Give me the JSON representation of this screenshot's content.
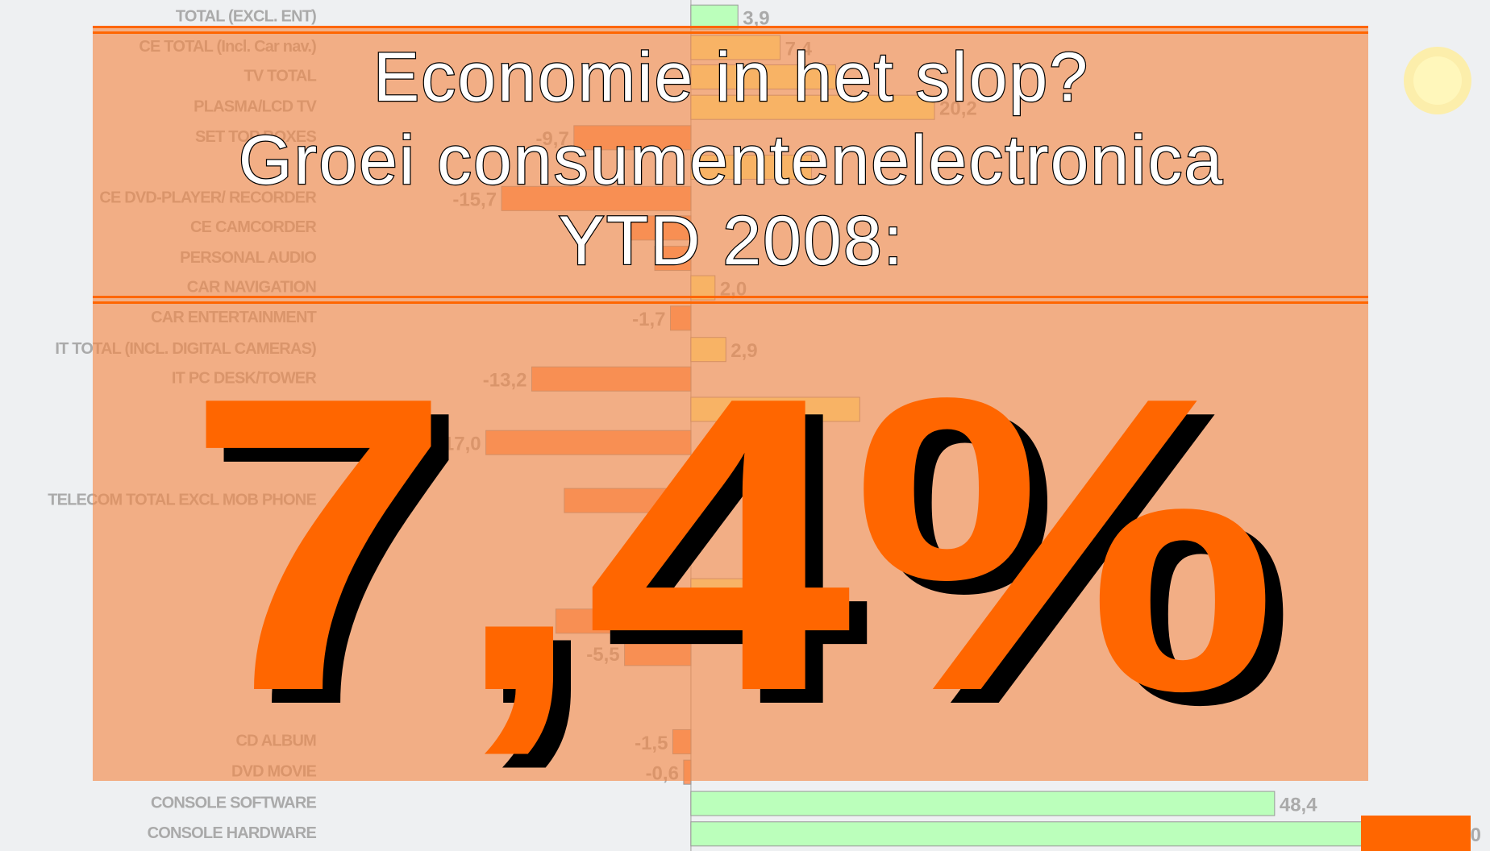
{
  "title_lines": [
    "Economie in het slop?",
    "Groei consumentenelectronica",
    "YTD 2008:"
  ],
  "headline": "7,4%",
  "chart_data": {
    "type": "hbar",
    "categories": [
      "TOTAL (EXCL. ENT)",
      "CE TOTAL (Incl. Car nav.)",
      "TV TOTAL",
      "PLASMA/LCD TV",
      "SET TOP  BOXES",
      null,
      "CE DVD-PLAYER/ RECORDER",
      "CE CAMCORDER",
      "PERSONAL AUDIO",
      "CAR NAVIGATION",
      "CAR ENTERTAINMENT",
      "IT TOTAL (INCL. DIGITAL CAMERAS)",
      "IT PC DESK/TOWER",
      null,
      null,
      null,
      "TELECOM TOTAL EXCL MOB PHONE",
      null,
      null,
      null,
      null,
      "CD ALBUM",
      "DVD MOVIE",
      "CONSOLE SOFTWARE",
      "CONSOLE HARDWARE"
    ],
    "values": [
      3.9,
      7.4,
      12,
      20.2,
      -9.7,
      10,
      -15.7,
      -5.5,
      -3,
      2.0,
      -1.7,
      2.9,
      -13.2,
      14,
      -17.0,
      7.5,
      -10.5,
      -2,
      10.8,
      -11.2,
      -5.5,
      -1.5,
      -0.6,
      48.4,
      62.0
    ],
    "value_labels": [
      "3,9",
      "7,4",
      null,
      "20,2",
      "-9,7",
      null,
      "-15,7",
      null,
      null,
      "2,0",
      "-1,7",
      "2,9",
      "-13,2",
      null,
      "-17,0",
      null,
      null,
      null,
      null,
      null,
      "-5,5",
      "-1,5",
      "-0,6",
      "48,4",
      "62,0"
    ],
    "colors": [
      "#bbffbb",
      "#ffff99",
      "#ffff99",
      "#ffff99",
      "#ff9966",
      "#ffff99",
      "#ff9966",
      "#ff9966",
      "#ff9966",
      "#ffff99",
      "#ff9966",
      "#ffff99",
      "#ff9966",
      "#ffff99",
      "#ff9966",
      "#ffff99",
      "#ff9966",
      "#ff9966",
      "#ffff99",
      "#ff9966",
      "#ff9966",
      "#ff9966",
      "#ff9966",
      "#bbffbb",
      "#bbffbb"
    ],
    "xlim": [
      -50,
      65
    ]
  }
}
